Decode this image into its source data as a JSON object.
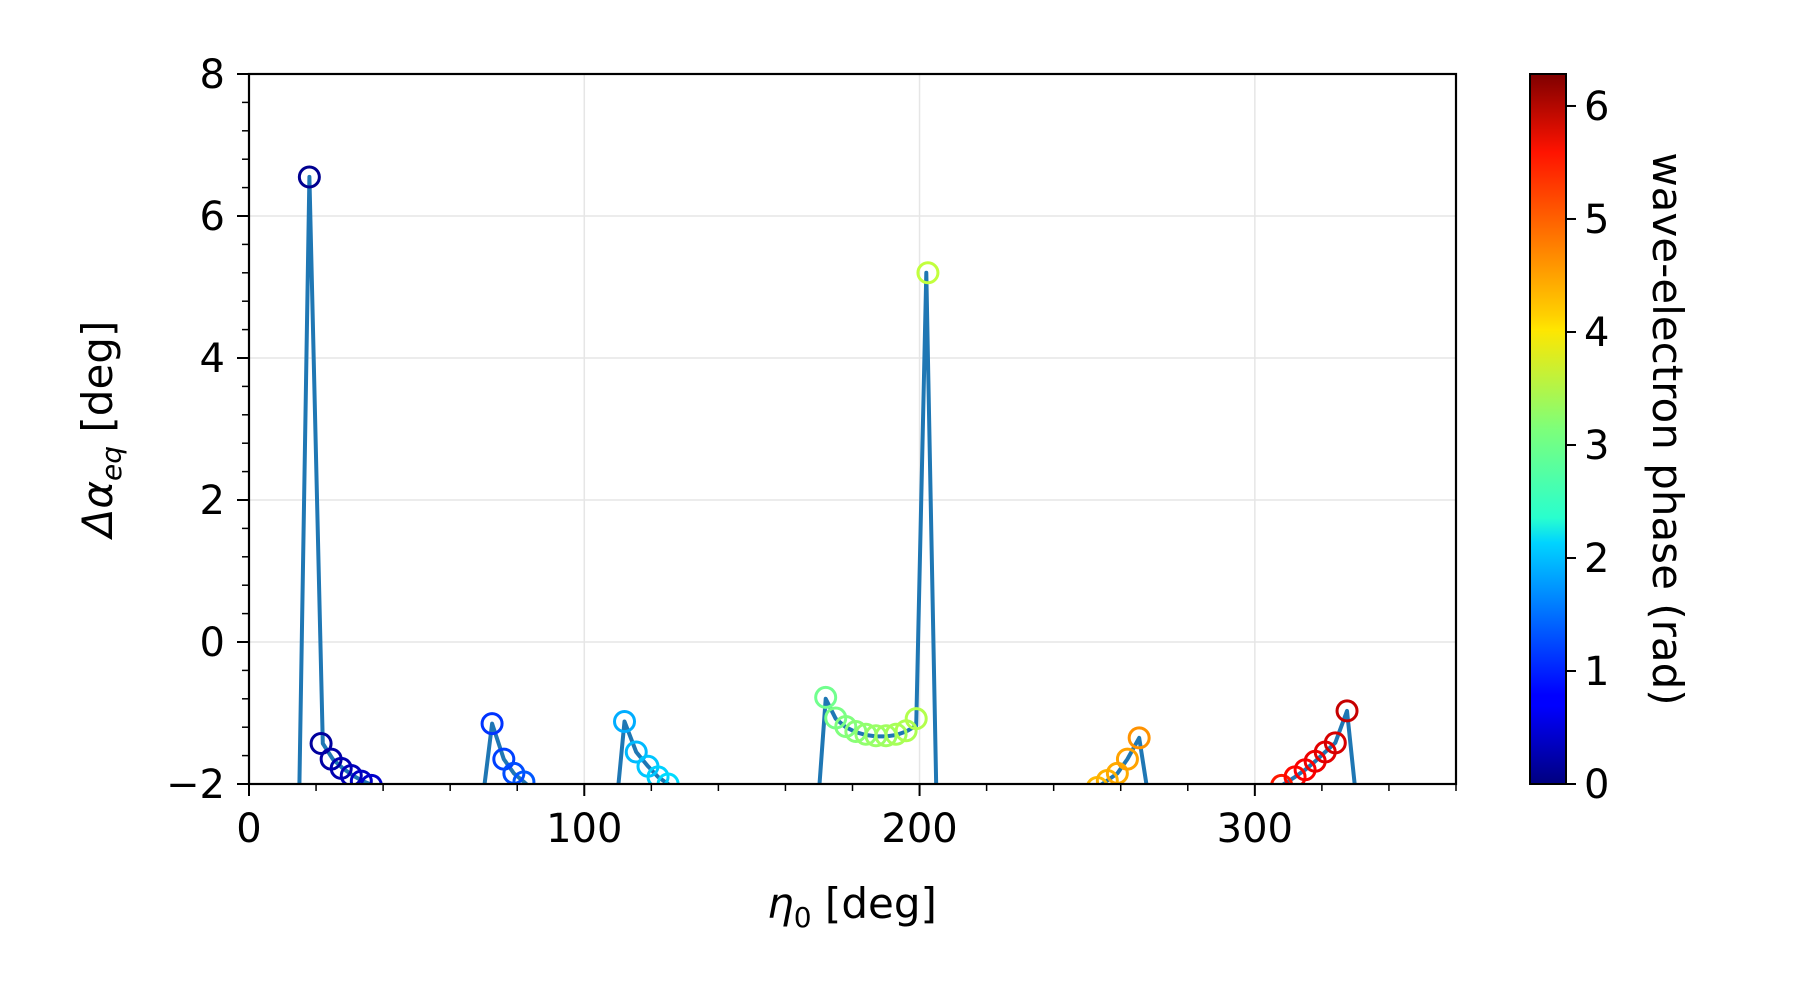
{
  "chart_data": {
    "type": "line",
    "title": "",
    "xlabel": {
      "main": "η",
      "sub": "0",
      "rest": " [deg]"
    },
    "ylabel": {
      "main": "Δα",
      "sub": "eq",
      "rest": " [deg]"
    },
    "xlim": [
      0,
      360
    ],
    "ylim": [
      -2,
      8
    ],
    "xticks": [
      0,
      100,
      200,
      300
    ],
    "xtick_labels": [
      "0",
      "100",
      "200",
      "300"
    ],
    "yticks": [
      -2,
      0,
      2,
      4,
      6,
      8
    ],
    "ytick_labels": [
      "−2",
      "0",
      "2",
      "4",
      "6",
      "8"
    ],
    "grid": true,
    "line_color": "#1f77b4",
    "colorbar": {
      "label": "wave-electron phase (rad)",
      "colormap": "jet",
      "range": [
        0,
        6.283
      ],
      "ticks": [
        0,
        1,
        2,
        3,
        4,
        5,
        6
      ],
      "tick_labels": [
        "0",
        "1",
        "2",
        "3",
        "4",
        "5",
        "6"
      ]
    },
    "line_x": [
      15,
      18,
      22,
      25,
      28,
      31,
      34,
      37,
      39,
      70,
      72.5,
      76,
      79,
      82,
      85,
      110,
      112,
      115.5,
      119,
      122,
      125,
      128,
      170,
      172,
      175,
      178,
      181,
      184,
      187,
      190,
      193,
      196,
      199,
      202,
      205,
      253,
      256,
      259,
      262,
      265.5,
      268,
      308,
      312,
      315,
      318,
      321,
      324,
      327.5,
      330
    ],
    "line_y": [
      -2.1,
      6.55,
      -1.43,
      -1.65,
      -1.78,
      -1.88,
      -1.96,
      -2.02,
      -2.1,
      -2.1,
      -1.15,
      -1.65,
      -1.85,
      -1.97,
      -2.1,
      -2.1,
      -1.12,
      -1.55,
      -1.75,
      -1.9,
      -2.0,
      -2.1,
      -2.1,
      -0.8,
      -1.08,
      -1.2,
      -1.27,
      -1.31,
      -1.33,
      -1.33,
      -1.31,
      -1.26,
      -1.18,
      5.2,
      -2.1,
      -2.05,
      -1.95,
      -1.85,
      -1.65,
      -1.35,
      -2.1,
      -2.02,
      -1.9,
      -1.8,
      -1.68,
      -1.55,
      -1.42,
      -0.97,
      -2.1
    ],
    "points": [
      {
        "x": 18,
        "y": 6.55,
        "phase": 0.1
      },
      {
        "x": 21.5,
        "y": -1.43,
        "phase": 0.18
      },
      {
        "x": 24.5,
        "y": -1.65,
        "phase": 0.24
      },
      {
        "x": 27.5,
        "y": -1.78,
        "phase": 0.3
      },
      {
        "x": 30.5,
        "y": -1.88,
        "phase": 0.36
      },
      {
        "x": 33.5,
        "y": -1.96,
        "phase": 0.42
      },
      {
        "x": 36.5,
        "y": -2.02,
        "phase": 0.47
      },
      {
        "x": 72.5,
        "y": -1.15,
        "phase": 1.1
      },
      {
        "x": 76,
        "y": -1.65,
        "phase": 1.18
      },
      {
        "x": 79,
        "y": -1.85,
        "phase": 1.26
      },
      {
        "x": 82,
        "y": -1.97,
        "phase": 1.33
      },
      {
        "x": 112,
        "y": -1.12,
        "phase": 1.85
      },
      {
        "x": 115.5,
        "y": -1.55,
        "phase": 1.93
      },
      {
        "x": 119,
        "y": -1.75,
        "phase": 2.0
      },
      {
        "x": 122,
        "y": -1.9,
        "phase": 2.07
      },
      {
        "x": 125,
        "y": -2.0,
        "phase": 2.14
      },
      {
        "x": 172,
        "y": -0.78,
        "phase": 3.05
      },
      {
        "x": 175,
        "y": -1.07,
        "phase": 3.1
      },
      {
        "x": 178,
        "y": -1.19,
        "phase": 3.15
      },
      {
        "x": 181,
        "y": -1.26,
        "phase": 3.2
      },
      {
        "x": 184,
        "y": -1.3,
        "phase": 3.25
      },
      {
        "x": 187,
        "y": -1.32,
        "phase": 3.3
      },
      {
        "x": 190,
        "y": -1.32,
        "phase": 3.34
      },
      {
        "x": 193,
        "y": -1.3,
        "phase": 3.38
      },
      {
        "x": 196,
        "y": -1.25,
        "phase": 3.42
      },
      {
        "x": 199,
        "y": -1.08,
        "phase": 3.46
      },
      {
        "x": 202.5,
        "y": 5.2,
        "phase": 3.55
      },
      {
        "x": 253,
        "y": -2.05,
        "phase": 4.35
      },
      {
        "x": 256,
        "y": -1.95,
        "phase": 4.4
      },
      {
        "x": 259,
        "y": -1.85,
        "phase": 4.45
      },
      {
        "x": 262,
        "y": -1.65,
        "phase": 4.5
      },
      {
        "x": 265.5,
        "y": -1.35,
        "phase": 4.6
      },
      {
        "x": 308,
        "y": -2.02,
        "phase": 5.35
      },
      {
        "x": 312,
        "y": -1.9,
        "phase": 5.45
      },
      {
        "x": 315,
        "y": -1.8,
        "phase": 5.52
      },
      {
        "x": 318,
        "y": -1.68,
        "phase": 5.6
      },
      {
        "x": 321,
        "y": -1.55,
        "phase": 5.67
      },
      {
        "x": 324,
        "y": -1.42,
        "phase": 5.75
      },
      {
        "x": 327.5,
        "y": -0.97,
        "phase": 5.85
      }
    ]
  }
}
